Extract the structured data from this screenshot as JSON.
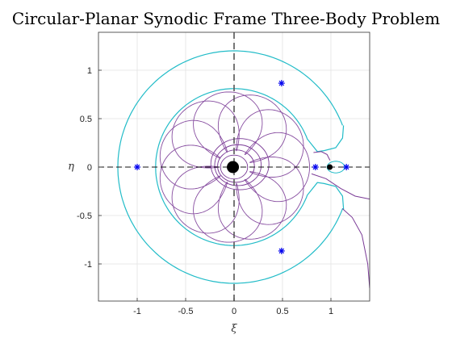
{
  "chart_data": {
    "type": "line",
    "title": "Circular-Planar Synodic Frame Three-Body Problem",
    "xlabel": "ξ",
    "ylabel": "η",
    "xlim": [
      -1.4,
      1.4
    ],
    "ylim": [
      -1.4,
      1.4
    ],
    "x_ticks": [
      -1,
      -0.5,
      0,
      0.5,
      1
    ],
    "x_tick_labels": [
      "-1",
      "-0.5",
      "0",
      "0.5",
      "1"
    ],
    "y_ticks": [
      -1,
      -0.5,
      0,
      0.5,
      1
    ],
    "y_tick_labels": [
      "-1",
      "-0.5",
      "0",
      "0.5",
      "1"
    ],
    "grid": true,
    "colors": {
      "zero_velocity_curve": "#22bcc8",
      "trajectory": "#7a3a96",
      "lagrange_points": "#0000ee",
      "primaries": "#000000",
      "axis_lines": "#555555"
    },
    "primaries": [
      {
        "x": -0.012,
        "y": 0,
        "size": "large"
      },
      {
        "x": 0.988,
        "y": 0,
        "size": "small"
      }
    ],
    "lagrange_points": [
      {
        "x": 0.84,
        "y": 0
      },
      {
        "x": 1.16,
        "y": 0
      },
      {
        "x": -1.0,
        "y": 0
      },
      {
        "x": 0.49,
        "y": 0.866
      },
      {
        "x": 0.49,
        "y": -0.866
      }
    ],
    "zero_velocity_curve": {
      "outer_radius": 1.2,
      "inner_radius": 0.81,
      "gap_half_angle_deg": 21
    },
    "trajectory": {
      "type": "rosette",
      "major_radius": 0.78,
      "inner_radius": 0.17,
      "petals": 11
    },
    "escape_curves": [
      [
        [
          0.8,
          -0.07
        ],
        [
          0.95,
          -0.12
        ],
        [
          1.1,
          -0.22
        ],
        [
          1.25,
          -0.3
        ],
        [
          1.4,
          -0.33
        ]
      ],
      [
        [
          1.12,
          -0.43
        ],
        [
          1.22,
          -0.52
        ],
        [
          1.32,
          -0.7
        ],
        [
          1.38,
          -1.0
        ],
        [
          1.4,
          -1.25
        ]
      ],
      [
        [
          0.82,
          0.15
        ],
        [
          0.9,
          0.16
        ],
        [
          0.96,
          0.13
        ],
        [
          0.99,
          0.07
        ]
      ]
    ]
  }
}
